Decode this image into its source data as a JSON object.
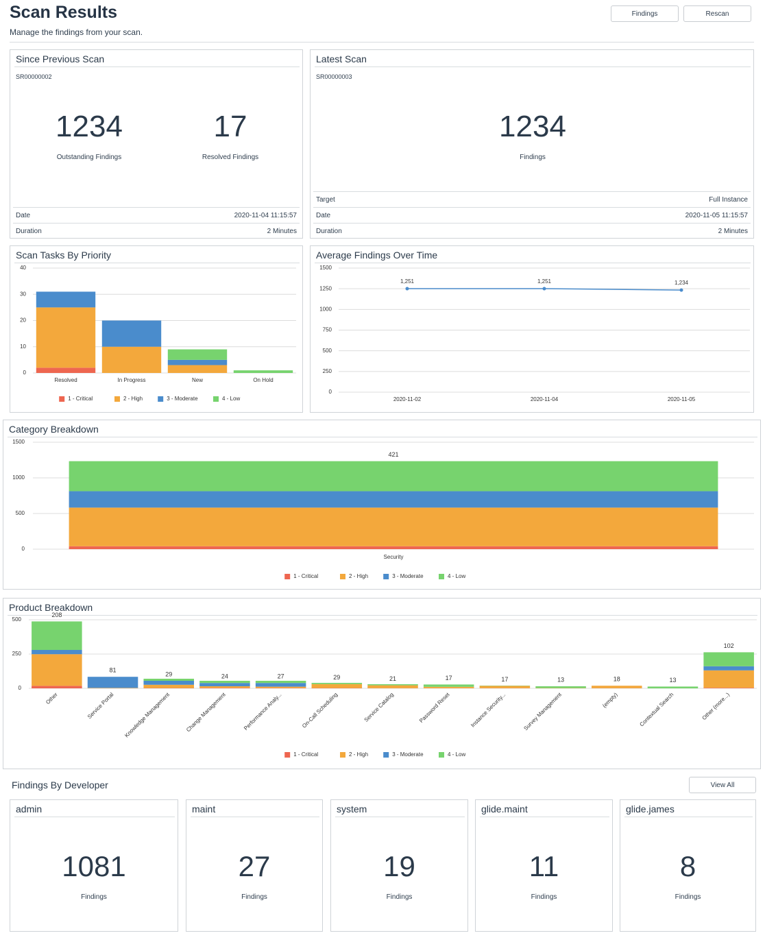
{
  "header": {
    "title": "Scan Results",
    "subtitle": "Manage the findings from your scan.",
    "buttons": [
      "Findings",
      "Rescan"
    ]
  },
  "since_previous_scan": {
    "title": "Since Previous Scan",
    "scan_id": "SR00000002",
    "stats": [
      {
        "value": 1234,
        "label": "Outstanding Findings"
      },
      {
        "value": 17,
        "label": "Resolved Findings"
      }
    ],
    "details": [
      {
        "label": "Date",
        "value": "2020-11-04 11:15:57"
      },
      {
        "label": "Duration",
        "value": "2 Minutes"
      }
    ]
  },
  "latest_scan": {
    "title": "Latest Scan",
    "scan_id": "SR00000003",
    "stat": {
      "value": 1234,
      "label": "Findings"
    },
    "details": [
      {
        "label": "Target",
        "value": "Full Instance"
      },
      {
        "label": "Date",
        "value": "2020-11-05 11:15:57"
      },
      {
        "label": "Duration",
        "value": "2 Minutes"
      }
    ]
  },
  "chart_data": [
    {
      "type": "bar",
      "stacked": true,
      "title": "Scan Tasks By Priority",
      "categories": [
        "Resolved",
        "In Progress",
        "New",
        "On Hold"
      ],
      "series": [
        {
          "name": "1 - Critical",
          "color": "#ee6650",
          "values": [
            2,
            0,
            0,
            0
          ]
        },
        {
          "name": "2 - High",
          "color": "#f3a83c",
          "values": [
            23,
            10,
            3,
            0
          ]
        },
        {
          "name": "3 - Moderate",
          "color": "#4a8ccc",
          "values": [
            6,
            10,
            2,
            0
          ]
        },
        {
          "name": "4 - Low",
          "color": "#77d36e",
          "values": [
            0,
            0,
            4,
            1
          ]
        }
      ],
      "ylim": [
        0,
        40
      ],
      "yticks": [
        0,
        10,
        20,
        30,
        40
      ],
      "grid": true,
      "legend": "bottom"
    },
    {
      "type": "line",
      "title": "Average Findings Over Time",
      "categories": [
        "2020-11-02",
        "2020-11-04",
        "2020-11-05"
      ],
      "values": [
        1251,
        1251,
        1234
      ],
      "value_labels": [
        "1,251",
        "1,251",
        "1,234"
      ],
      "color": "#4a8ccc",
      "ylim": [
        0,
        1500
      ],
      "yticks": [
        0,
        250,
        500,
        750,
        1000,
        1250,
        1500
      ],
      "grid": true
    },
    {
      "type": "bar",
      "stacked": true,
      "title": "Category Breakdown",
      "categories": [
        "Security"
      ],
      "series": [
        {
          "name": "1 - Critical",
          "color": "#ee6650",
          "values": [
            41
          ]
        },
        {
          "name": "2 - High",
          "color": "#f3a83c",
          "values": [
            542
          ]
        },
        {
          "name": "3 - Moderate",
          "color": "#4a8ccc",
          "values": [
            230
          ]
        },
        {
          "name": "4 - Low",
          "color": "#77d36e",
          "values": [
            421
          ]
        }
      ],
      "ylim": [
        0,
        1500
      ],
      "yticks": [
        0,
        500,
        1000,
        1500
      ],
      "grid": true,
      "legend": "bottom",
      "data_labels": true
    },
    {
      "type": "bar",
      "stacked": true,
      "title": "Product Breakdown",
      "categories": [
        "Other",
        "Service Portal",
        "Knowledge Management",
        "Change Management",
        "Performance Analy...",
        "On-Call Scheduling",
        "Service Catalog",
        "Password Reset",
        "Instance Security...",
        "Survey Management",
        "(empty)",
        "Contextual Search",
        "Other (more...)"
      ],
      "series": [
        {
          "name": "1 - Critical",
          "color": "#ee6650",
          "values": [
            18,
            0,
            2,
            3,
            2,
            2,
            1,
            1,
            1,
            0,
            1,
            0,
            4
          ],
          "value_labels": [
            "18",
            null,
            null,
            null,
            null,
            null,
            null,
            null,
            null,
            null,
            null,
            null,
            "4"
          ]
        },
        {
          "name": "2 - High",
          "color": "#f3a83c",
          "values": [
            231,
            3,
            24,
            12,
            10,
            29,
            21,
            10,
            17,
            2,
            18,
            0,
            127
          ],
          "value_labels": [
            "231",
            "3",
            null,
            null,
            null,
            "29",
            "21",
            null,
            "17",
            null,
            "18",
            null,
            "127"
          ]
        },
        {
          "name": "3 - Moderate",
          "color": "#4a8ccc",
          "values": [
            31,
            81,
            29,
            24,
            27,
            0,
            0,
            0,
            0,
            0,
            0,
            0,
            30
          ],
          "value_labels": [
            null,
            "81",
            "29",
            "24",
            "27",
            null,
            null,
            null,
            null,
            null,
            null,
            null,
            null
          ]
        },
        {
          "name": "4 - Low",
          "color": "#77d36e",
          "values": [
            208,
            0,
            15,
            16,
            16,
            9,
            8,
            17,
            2,
            13,
            0,
            13,
            102
          ],
          "value_labels": [
            "208",
            null,
            null,
            null,
            null,
            null,
            null,
            "17",
            null,
            "13",
            null,
            "13",
            "102"
          ]
        }
      ],
      "ylim": [
        0,
        500
      ],
      "yticks": [
        0,
        250,
        500
      ],
      "grid": true,
      "legend": "bottom",
      "data_labels": true,
      "rotate_labels": true
    }
  ],
  "findings_by_developer": {
    "title": "Findings By Developer",
    "button": "View All",
    "developers": [
      {
        "name": "admin",
        "count": 1081,
        "label": "Findings"
      },
      {
        "name": "maint",
        "count": 27,
        "label": "Findings"
      },
      {
        "name": "system",
        "count": 19,
        "label": "Findings"
      },
      {
        "name": "glide.maint",
        "count": 11,
        "label": "Findings"
      },
      {
        "name": "glide.james",
        "count": 8,
        "label": "Findings"
      }
    ]
  }
}
